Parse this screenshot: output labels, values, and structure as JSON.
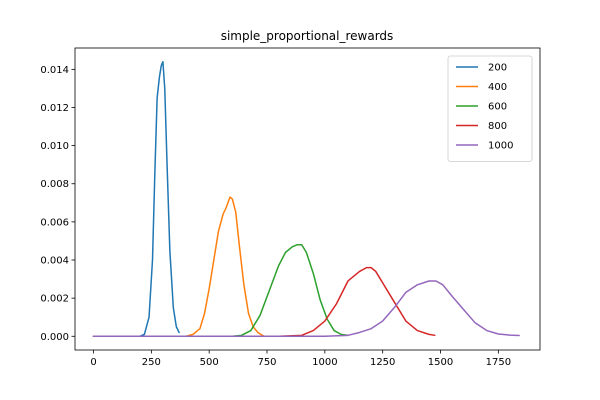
{
  "chart_data": {
    "type": "line",
    "title": "simple_proportional_rewards",
    "xlabel": "",
    "ylabel": "",
    "xlim": [
      -80,
      1930
    ],
    "ylim": [
      -0.00072,
      0.01512
    ],
    "xticks": [
      0,
      250,
      500,
      750,
      1000,
      1250,
      1500,
      1750
    ],
    "xtick_labels": [
      "0",
      "250",
      "500",
      "750",
      "1000",
      "1250",
      "1500",
      "1750"
    ],
    "yticks": [
      0,
      0.002,
      0.004,
      0.006,
      0.008,
      0.01,
      0.012,
      0.014
    ],
    "ytick_labels": [
      "0.000",
      "0.002",
      "0.004",
      "0.006",
      "0.008",
      "0.010",
      "0.012",
      "0.014"
    ],
    "grid": false,
    "legend_position": "top-right",
    "series": [
      {
        "name": "200",
        "color": "#1f77b4",
        "x": [
          0,
          100,
          200,
          220,
          240,
          255,
          265,
          275,
          285,
          293,
          300,
          308,
          318,
          330,
          345,
          358,
          370
        ],
        "y": [
          0,
          0,
          0,
          0.0001,
          0.001,
          0.004,
          0.0085,
          0.0125,
          0.0136,
          0.0142,
          0.0144,
          0.013,
          0.009,
          0.0045,
          0.0015,
          0.0005,
          0.0002
        ]
      },
      {
        "name": "400",
        "color": "#ff7f0e",
        "x": [
          0,
          200,
          400,
          430,
          460,
          480,
          500,
          520,
          540,
          560,
          575,
          590,
          600,
          615,
          630,
          650,
          670,
          690,
          710,
          730,
          740
        ],
        "y": [
          0,
          0,
          0,
          0.0001,
          0.0004,
          0.0012,
          0.0025,
          0.004,
          0.0055,
          0.0064,
          0.0068,
          0.0073,
          0.0072,
          0.0065,
          0.0048,
          0.0027,
          0.0012,
          0.0005,
          0.0002,
          5e-05,
          0
        ]
      },
      {
        "name": "600",
        "color": "#2ca02c",
        "x": [
          0,
          300,
          600,
          640,
          680,
          720,
          760,
          800,
          830,
          860,
          880,
          900,
          920,
          950,
          980,
          1010,
          1040,
          1070,
          1100
        ],
        "y": [
          0,
          0,
          0,
          5e-05,
          0.0003,
          0.0011,
          0.0024,
          0.0037,
          0.0044,
          0.0047,
          0.0048,
          0.0048,
          0.0044,
          0.0033,
          0.0019,
          0.0009,
          0.0003,
          0.0001,
          5e-05
        ]
      },
      {
        "name": "800",
        "color": "#d62728",
        "x": [
          0,
          400,
          800,
          900,
          950,
          1000,
          1050,
          1100,
          1150,
          1180,
          1200,
          1220,
          1250,
          1300,
          1350,
          1400,
          1450,
          1475
        ],
        "y": [
          0,
          0,
          0,
          5e-05,
          0.0003,
          0.0008,
          0.0017,
          0.0029,
          0.0034,
          0.0036,
          0.0036,
          0.0034,
          0.0028,
          0.0018,
          0.0008,
          0.0003,
          0.0001,
          5e-05
        ]
      },
      {
        "name": "1000",
        "color": "#9467bd",
        "x": [
          0,
          500,
          1000,
          1100,
          1150,
          1200,
          1250,
          1300,
          1350,
          1400,
          1450,
          1480,
          1510,
          1550,
          1600,
          1650,
          1700,
          1750,
          1800,
          1840
        ],
        "y": [
          0,
          0,
          0,
          5e-05,
          0.0002,
          0.0004,
          0.0008,
          0.0015,
          0.0023,
          0.0027,
          0.0029,
          0.0029,
          0.0027,
          0.0021,
          0.0014,
          0.0007,
          0.0003,
          0.00012,
          6e-05,
          4e-05
        ]
      }
    ]
  }
}
